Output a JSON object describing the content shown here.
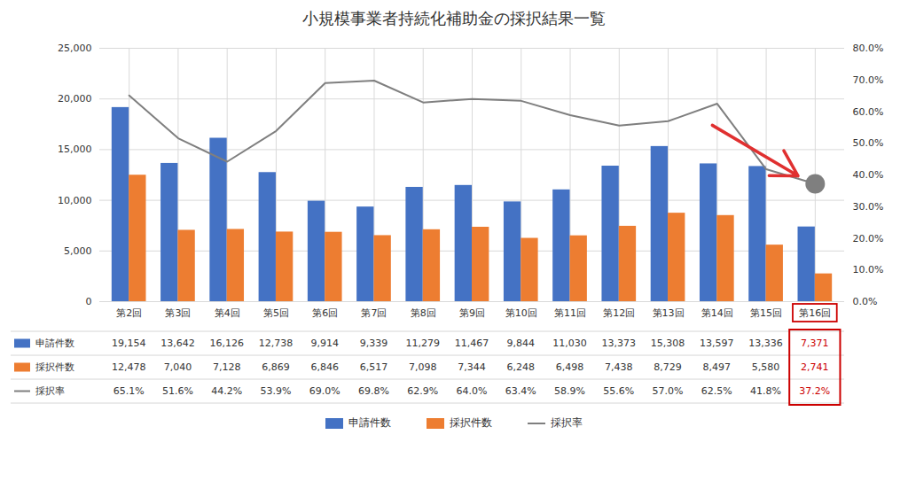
{
  "chart_data": {
    "type": "bar",
    "title": "小規模事業者持続化補助金の採択結果一覧",
    "categories": [
      "第2回",
      "第3回",
      "第4回",
      "第5回",
      "第6回",
      "第7回",
      "第8回",
      "第9回",
      "第10回",
      "第11回",
      "第12回",
      "第13回",
      "第14回",
      "第15回",
      "第16回"
    ],
    "series": [
      {
        "name": "申請件数",
        "color": "#4472C4",
        "values": [
          19154,
          13642,
          16126,
          12738,
          9914,
          9339,
          11279,
          11467,
          9844,
          11030,
          13373,
          15308,
          13597,
          13336,
          7371
        ],
        "value_labels": [
          "19,154",
          "13,642",
          "16,126",
          "12,738",
          "9,914",
          "9,339",
          "11,279",
          "11,467",
          "9,844",
          "11,030",
          "13,373",
          "15,308",
          "13,597",
          "13,336",
          "7,371"
        ]
      },
      {
        "name": "採択件数",
        "color": "#ED7D31",
        "values": [
          12478,
          7040,
          7128,
          6869,
          6846,
          6517,
          7098,
          7344,
          6248,
          6498,
          7438,
          8729,
          8497,
          5580,
          2741
        ],
        "value_labels": [
          "12,478",
          "7,040",
          "7,128",
          "6,869",
          "6,846",
          "6,517",
          "7,098",
          "7,344",
          "6,248",
          "6,498",
          "7,438",
          "8,729",
          "8,497",
          "5,580",
          "2,741"
        ]
      },
      {
        "name": "採択率",
        "type": "line",
        "axis": "y2",
        "color": "#7F7F7F",
        "values": [
          0.651,
          0.516,
          0.442,
          0.539,
          0.69,
          0.698,
          0.629,
          0.64,
          0.634,
          0.589,
          0.556,
          0.57,
          0.625,
          0.418,
          0.372
        ],
        "value_labels": [
          "65.1%",
          "51.6%",
          "44.2%",
          "53.9%",
          "69.0%",
          "69.8%",
          "62.9%",
          "64.0%",
          "63.4%",
          "58.9%",
          "55.6%",
          "57.0%",
          "62.5%",
          "41.8%",
          "37.2%"
        ]
      }
    ],
    "ylim": [
      0,
      25000
    ],
    "yticks": [
      0,
      {
        "value": 5000,
        "label": "5,000"
      },
      {
        "value": 10000,
        "label": "10,000"
      },
      {
        "value": 15000,
        "label": "15,000"
      },
      {
        "value": 20000,
        "label": "20,000"
      },
      {
        "value": 25000,
        "label": "25,000"
      }
    ],
    "y2lim": [
      0.0,
      0.8
    ],
    "y2ticks": [
      {
        "value": 0.0,
        "label": "0.0%"
      },
      {
        "value": 0.1,
        "label": "10.0%"
      },
      {
        "value": 0.2,
        "label": "20.0%"
      },
      {
        "value": 0.3,
        "label": "30.0%"
      },
      {
        "value": 0.4,
        "label": "40.0%"
      },
      {
        "value": 0.5,
        "label": "50.0%"
      },
      {
        "value": 0.6,
        "label": "60.0%"
      },
      {
        "value": 0.7,
        "label": "70.0%"
      },
      {
        "value": 0.8,
        "label": "80.0%"
      }
    ],
    "grid": true,
    "legend": "bottom",
    "data_labels": true
  }
}
